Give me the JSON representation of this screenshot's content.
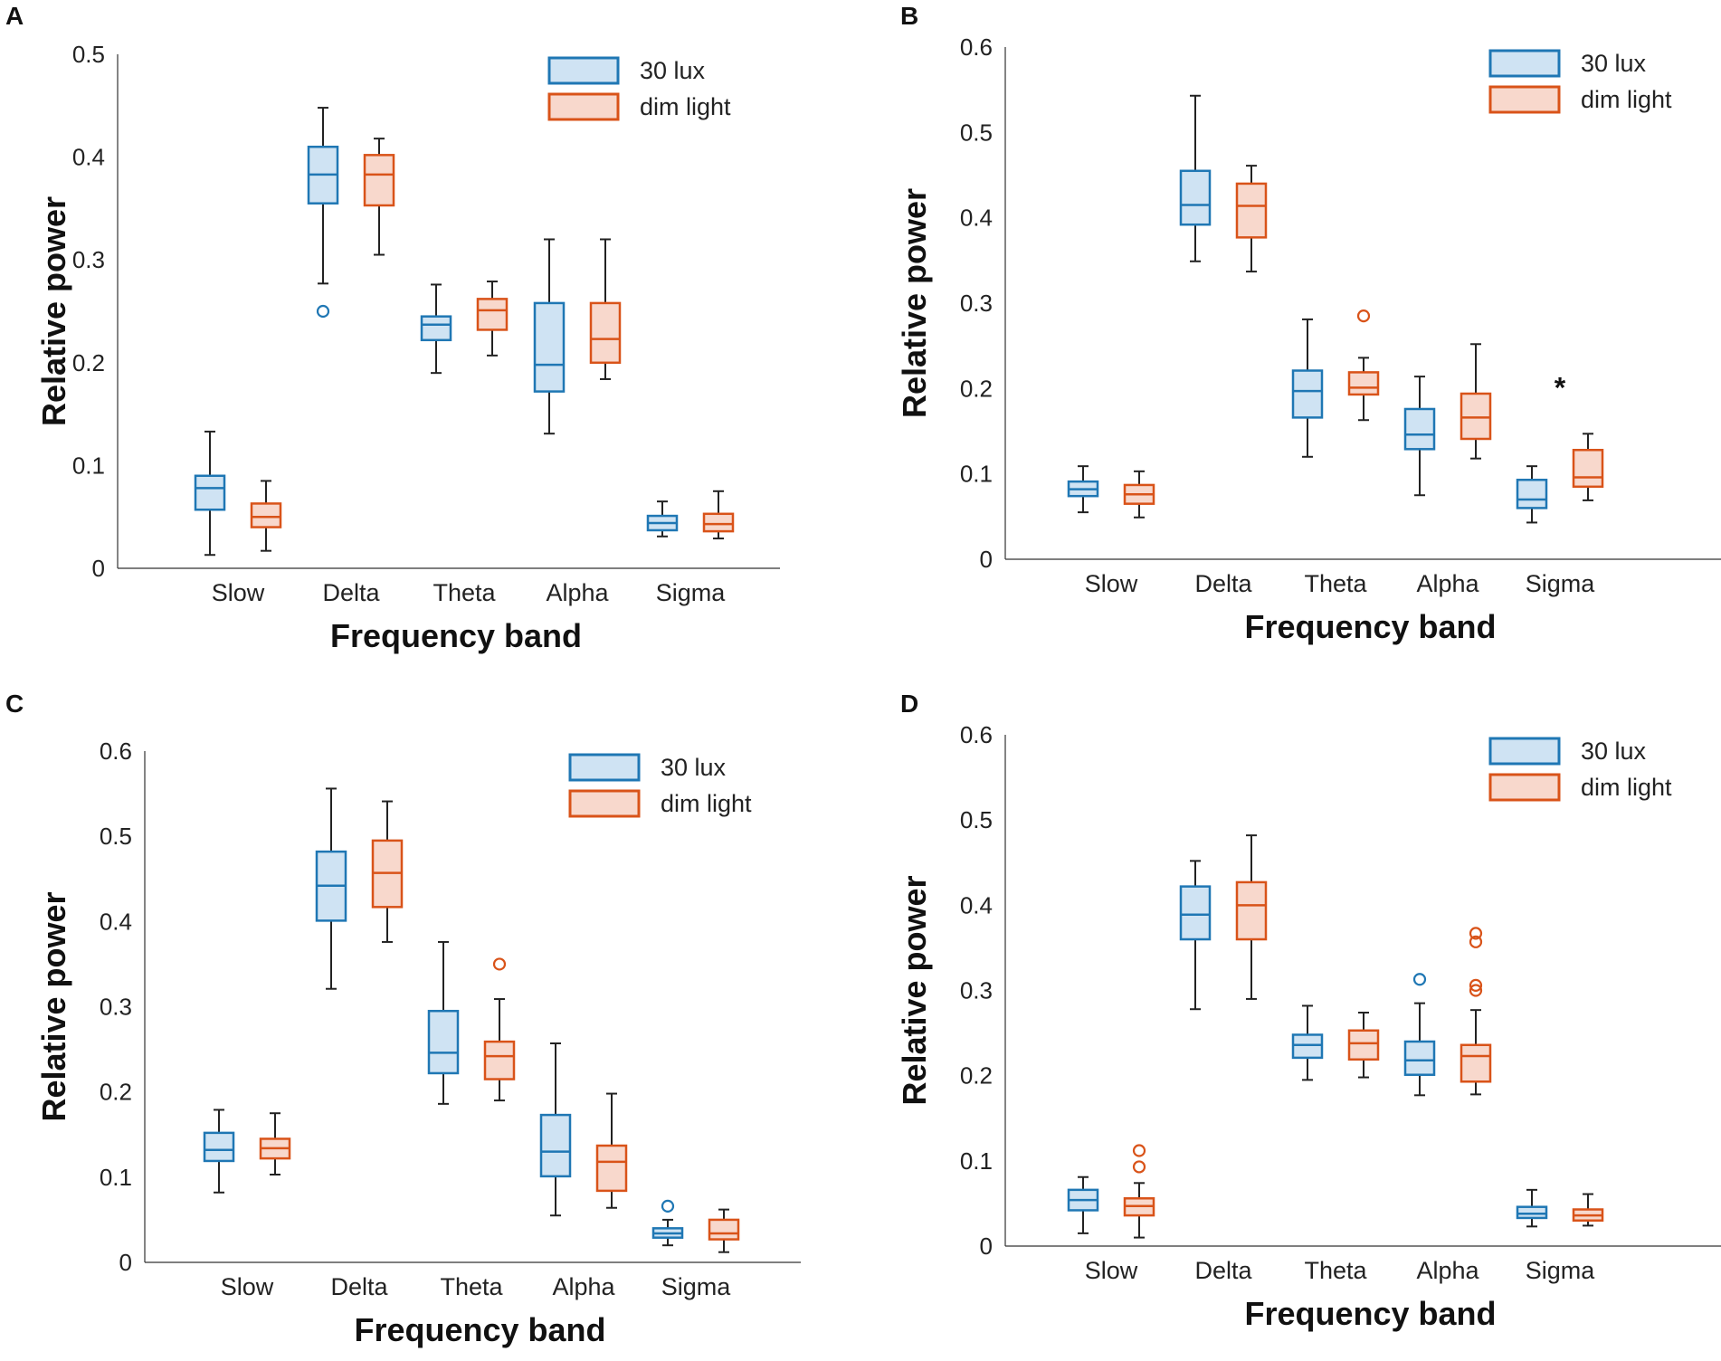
{
  "colors": {
    "blue_edge": "#1f77b4",
    "blue_fill": "#cfe3f3",
    "orange_edge": "#d95319",
    "orange_fill": "#f8d8cc",
    "whisker": "#222222",
    "axis": "#333333"
  },
  "chart_data": [
    {
      "panel": "A",
      "type": "box",
      "xlabel": "Frequency band",
      "ylabel": "Relative power",
      "ylim": [
        0,
        0.5
      ],
      "yticks": [
        "0",
        "0.1",
        "0.2",
        "0.3",
        "0.4",
        "0.5"
      ],
      "categories": [
        "Slow",
        "Delta",
        "Theta",
        "Alpha",
        "Sigma"
      ],
      "legend": [
        "30 lux",
        "dim light"
      ],
      "series": [
        {
          "name": "30 lux",
          "boxes": [
            {
              "min": 0.013,
              "q1": 0.057,
              "median": 0.078,
              "q3": 0.09,
              "max": 0.133,
              "outliers": []
            },
            {
              "min": 0.277,
              "q1": 0.355,
              "median": 0.383,
              "q3": 0.41,
              "max": 0.448,
              "outliers": [
                0.25
              ]
            },
            {
              "min": 0.19,
              "q1": 0.222,
              "median": 0.237,
              "q3": 0.245,
              "max": 0.276,
              "outliers": []
            },
            {
              "min": 0.131,
              "q1": 0.172,
              "median": 0.198,
              "q3": 0.258,
              "max": 0.32,
              "outliers": []
            },
            {
              "min": 0.031,
              "q1": 0.037,
              "median": 0.044,
              "q3": 0.051,
              "max": 0.065,
              "outliers": []
            }
          ]
        },
        {
          "name": "dim light",
          "boxes": [
            {
              "min": 0.017,
              "q1": 0.04,
              "median": 0.05,
              "q3": 0.063,
              "max": 0.085,
              "outliers": []
            },
            {
              "min": 0.305,
              "q1": 0.353,
              "median": 0.383,
              "q3": 0.402,
              "max": 0.418,
              "outliers": []
            },
            {
              "min": 0.207,
              "q1": 0.232,
              "median": 0.251,
              "q3": 0.262,
              "max": 0.279,
              "outliers": []
            },
            {
              "min": 0.184,
              "q1": 0.2,
              "median": 0.223,
              "q3": 0.258,
              "max": 0.32,
              "outliers": []
            },
            {
              "min": 0.029,
              "q1": 0.036,
              "median": 0.043,
              "q3": 0.053,
              "max": 0.075,
              "outliers": []
            }
          ]
        }
      ],
      "annotations": []
    },
    {
      "panel": "B",
      "type": "box",
      "xlabel": "Frequency band",
      "ylabel": "Relative power",
      "ylim": [
        0,
        0.6
      ],
      "yticks": [
        "0",
        "0.1",
        "0.2",
        "0.3",
        "0.4",
        "0.5",
        "0.6"
      ],
      "categories": [
        "Slow",
        "Delta",
        "Theta",
        "Alpha",
        "Sigma"
      ],
      "legend": [
        "30 lux",
        "dim light"
      ],
      "series": [
        {
          "name": "30 lux",
          "boxes": [
            {
              "min": 0.055,
              "q1": 0.074,
              "median": 0.082,
              "q3": 0.091,
              "max": 0.109,
              "outliers": []
            },
            {
              "min": 0.349,
              "q1": 0.392,
              "median": 0.415,
              "q3": 0.455,
              "max": 0.543,
              "outliers": []
            },
            {
              "min": 0.12,
              "q1": 0.166,
              "median": 0.197,
              "q3": 0.221,
              "max": 0.281,
              "outliers": []
            },
            {
              "min": 0.075,
              "q1": 0.129,
              "median": 0.146,
              "q3": 0.176,
              "max": 0.214,
              "outliers": []
            },
            {
              "min": 0.043,
              "q1": 0.06,
              "median": 0.07,
              "q3": 0.093,
              "max": 0.109,
              "outliers": []
            }
          ]
        },
        {
          "name": "dim light",
          "boxes": [
            {
              "min": 0.049,
              "q1": 0.065,
              "median": 0.076,
              "q3": 0.087,
              "max": 0.103,
              "outliers": []
            },
            {
              "min": 0.337,
              "q1": 0.377,
              "median": 0.414,
              "q3": 0.44,
              "max": 0.461,
              "outliers": []
            },
            {
              "min": 0.163,
              "q1": 0.193,
              "median": 0.201,
              "q3": 0.219,
              "max": 0.236,
              "outliers": [
                0.285
              ]
            },
            {
              "min": 0.118,
              "q1": 0.141,
              "median": 0.166,
              "q3": 0.194,
              "max": 0.252,
              "outliers": []
            },
            {
              "min": 0.069,
              "q1": 0.085,
              "median": 0.096,
              "q3": 0.128,
              "max": 0.147,
              "outliers": []
            }
          ]
        }
      ],
      "annotations": [
        {
          "text": "*",
          "category": "Sigma",
          "y": 0.2
        }
      ]
    },
    {
      "panel": "C",
      "type": "box",
      "xlabel": "Frequency band",
      "ylabel": "Relative power",
      "ylim": [
        0,
        0.6
      ],
      "yticks": [
        "0",
        "0.1",
        "0.2",
        "0.3",
        "0.4",
        "0.5",
        "0.6"
      ],
      "categories": [
        "Slow",
        "Delta",
        "Theta",
        "Alpha",
        "Sigma"
      ],
      "legend": [
        "30 lux",
        "dim light"
      ],
      "series": [
        {
          "name": "30 lux",
          "boxes": [
            {
              "min": 0.082,
              "q1": 0.119,
              "median": 0.132,
              "q3": 0.152,
              "max": 0.179,
              "outliers": []
            },
            {
              "min": 0.321,
              "q1": 0.401,
              "median": 0.442,
              "q3": 0.482,
              "max": 0.556,
              "outliers": []
            },
            {
              "min": 0.186,
              "q1": 0.222,
              "median": 0.246,
              "q3": 0.295,
              "max": 0.376,
              "outliers": []
            },
            {
              "min": 0.055,
              "q1": 0.101,
              "median": 0.13,
              "q3": 0.173,
              "max": 0.257,
              "outliers": []
            },
            {
              "min": 0.02,
              "q1": 0.029,
              "median": 0.034,
              "q3": 0.04,
              "max": 0.05,
              "outliers": [
                0.066
              ]
            }
          ]
        },
        {
          "name": "dim light",
          "boxes": [
            {
              "min": 0.103,
              "q1": 0.122,
              "median": 0.134,
              "q3": 0.145,
              "max": 0.175,
              "outliers": []
            },
            {
              "min": 0.376,
              "q1": 0.417,
              "median": 0.457,
              "q3": 0.495,
              "max": 0.541,
              "outliers": []
            },
            {
              "min": 0.19,
              "q1": 0.215,
              "median": 0.242,
              "q3": 0.259,
              "max": 0.309,
              "outliers": [
                0.35
              ]
            },
            {
              "min": 0.064,
              "q1": 0.084,
              "median": 0.118,
              "q3": 0.137,
              "max": 0.198,
              "outliers": []
            },
            {
              "min": 0.012,
              "q1": 0.027,
              "median": 0.034,
              "q3": 0.05,
              "max": 0.062,
              "outliers": []
            }
          ]
        }
      ],
      "annotations": []
    },
    {
      "panel": "D",
      "type": "box",
      "xlabel": "Frequency band",
      "ylabel": "Relative power",
      "ylim": [
        0,
        0.6
      ],
      "yticks": [
        "0",
        "0.1",
        "0.2",
        "0.3",
        "0.4",
        "0.5",
        "0.6"
      ],
      "categories": [
        "Slow",
        "Delta",
        "Theta",
        "Alpha",
        "Sigma"
      ],
      "legend": [
        "30 lux",
        "dim light"
      ],
      "series": [
        {
          "name": "30 lux",
          "boxes": [
            {
              "min": 0.015,
              "q1": 0.042,
              "median": 0.054,
              "q3": 0.066,
              "max": 0.081,
              "outliers": []
            },
            {
              "min": 0.278,
              "q1": 0.36,
              "median": 0.389,
              "q3": 0.422,
              "max": 0.452,
              "outliers": []
            },
            {
              "min": 0.195,
              "q1": 0.221,
              "median": 0.236,
              "q3": 0.248,
              "max": 0.282,
              "outliers": []
            },
            {
              "min": 0.177,
              "q1": 0.201,
              "median": 0.218,
              "q3": 0.24,
              "max": 0.285,
              "outliers": [
                0.313
              ]
            },
            {
              "min": 0.023,
              "q1": 0.033,
              "median": 0.038,
              "q3": 0.046,
              "max": 0.066,
              "outliers": []
            }
          ]
        },
        {
          "name": "dim light",
          "boxes": [
            {
              "min": 0.01,
              "q1": 0.036,
              "median": 0.047,
              "q3": 0.056,
              "max": 0.074,
              "outliers": [
                0.093,
                0.112
              ]
            },
            {
              "min": 0.29,
              "q1": 0.36,
              "median": 0.4,
              "q3": 0.427,
              "max": 0.482,
              "outliers": []
            },
            {
              "min": 0.198,
              "q1": 0.219,
              "median": 0.238,
              "q3": 0.253,
              "max": 0.274,
              "outliers": []
            },
            {
              "min": 0.178,
              "q1": 0.193,
              "median": 0.223,
              "q3": 0.236,
              "max": 0.277,
              "outliers": [
                0.3,
                0.306,
                0.357,
                0.367
              ]
            },
            {
              "min": 0.024,
              "q1": 0.03,
              "median": 0.036,
              "q3": 0.043,
              "max": 0.061,
              "outliers": []
            }
          ]
        }
      ],
      "annotations": []
    }
  ]
}
